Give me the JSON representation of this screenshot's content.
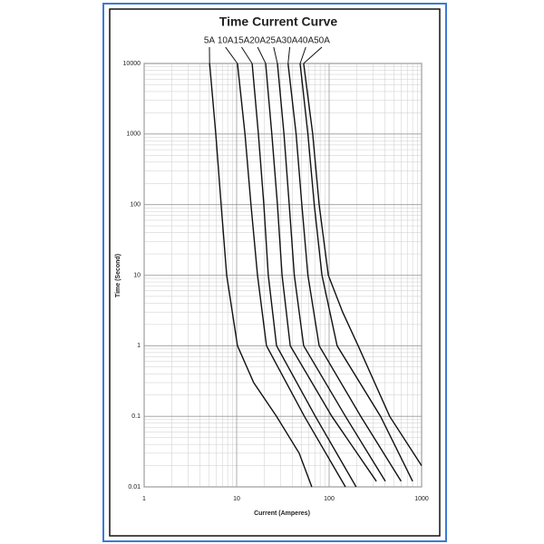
{
  "chart_data": {
    "type": "line",
    "title": "Time Current Curve",
    "x_label": "Current (Amperes)",
    "y_label": "Time (Second)",
    "xlog": true,
    "ylog": true,
    "grid": true,
    "minor_grid": true,
    "xlim": [
      1,
      1000
    ],
    "ylim": [
      0.01,
      10000
    ],
    "xticks": [
      1,
      10,
      100,
      1000
    ],
    "yticks": [
      0.01,
      0.1,
      1,
      10,
      100,
      1000,
      10000
    ],
    "series": [
      {
        "name": "5A",
        "color": "#111111",
        "x": [
          5.1,
          5.95,
          6.8,
          7.8,
          10.2,
          15.3,
          27,
          47.5,
          65
        ],
        "values": [
          10000,
          1000,
          100,
          10,
          1,
          0.3,
          0.1,
          0.03,
          0.01
        ]
      },
      {
        "name": "10A",
        "color": "#111111",
        "x": [
          10.2,
          12.3,
          14.3,
          16.8,
          21,
          54,
          150
        ],
        "values": [
          10000,
          1000,
          100,
          10,
          1,
          0.1,
          0.01
        ]
      },
      {
        "name": "15A",
        "color": "#111111",
        "x": [
          14.7,
          17.2,
          19.7,
          22,
          27,
          71,
          196
        ],
        "values": [
          10000,
          1000,
          100,
          10,
          1,
          0.1,
          0.01
        ]
      },
      {
        "name": "20A",
        "color": "#111111",
        "x": [
          20.6,
          24,
          27.6,
          31,
          38,
          107,
          324
        ],
        "values": [
          10000,
          1000,
          100,
          10,
          1,
          0.1,
          0.012
        ]
      },
      {
        "name": "25A",
        "color": "#111111",
        "x": [
          27.6,
          32.5,
          37,
          42,
          53,
          150,
          405
        ],
        "values": [
          10000,
          1000,
          100,
          10,
          1,
          0.1,
          0.012
        ]
      },
      {
        "name": "30A",
        "color": "#111111",
        "x": [
          36,
          44,
          50.7,
          59,
          78,
          220,
          600
        ],
        "values": [
          10000,
          1000,
          100,
          10,
          1,
          0.1,
          0.012
        ]
      },
      {
        "name": "40A",
        "color": "#111111",
        "x": [
          48.6,
          59,
          69,
          83.6,
          122,
          360,
          800
        ],
        "values": [
          10000,
          1000,
          100,
          10,
          1,
          0.1,
          0.012
        ]
      },
      {
        "name": "50A",
        "color": "#111111",
        "x": [
          53,
          66.5,
          78,
          98,
          140,
          206,
          452,
          1000
        ],
        "values": [
          10000,
          1000,
          100,
          10,
          3,
          1,
          0.1,
          0.02
        ]
      }
    ]
  }
}
